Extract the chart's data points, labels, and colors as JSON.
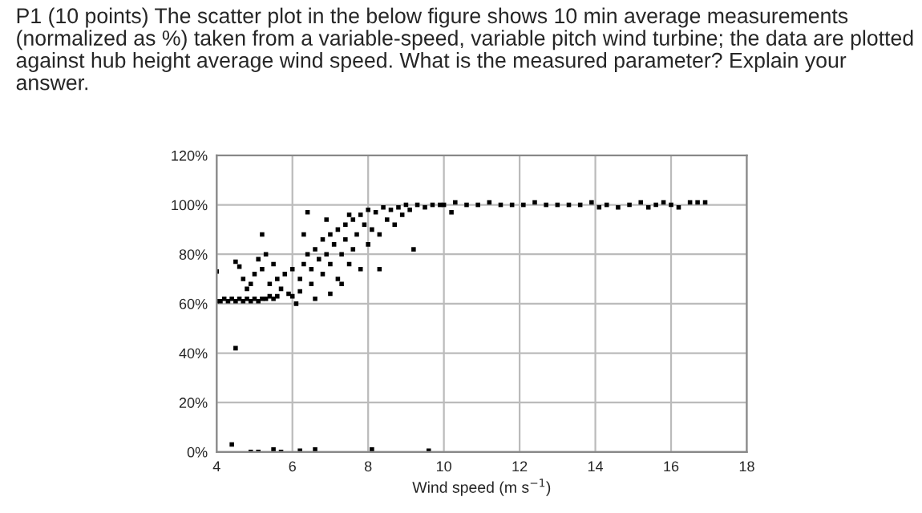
{
  "chart_data": {
    "type": "scatter",
    "title": "P1 (10 points) The scatter plot in the below figure shows 10 min average measurements (normalized as %) taken from a variable-speed, variable pitch wind turbine; the data are plotted against hub height average wind speed. What is the measured parameter? Explain your answer.",
    "xlabel": "Wind speed (m s$^{−1}$)",
    "x": [
      4.0,
      4.1,
      4.2,
      4.3,
      4.4,
      4.5,
      4.6,
      4.7,
      4.8,
      4.9,
      5.0,
      5.1,
      5.2,
      5.3,
      5.4,
      5.5,
      5.6,
      4.5,
      4.6,
      4.7,
      4.8,
      4.9,
      5.0,
      5.1,
      5.2,
      5.3,
      5.5,
      5.6,
      5.8,
      6.0,
      5.4,
      5.7,
      5.9,
      6.0,
      6.2,
      6.1,
      6.2,
      6.3,
      6.4,
      6.5,
      6.5,
      6.6,
      6.7,
      6.8,
      6.8,
      6.9,
      7.0,
      7.0,
      7.1,
      7.2,
      7.2,
      7.3,
      7.4,
      7.4,
      7.5,
      7.6,
      7.6,
      7.7,
      7.8,
      7.8,
      7.9,
      8.0,
      8.0,
      8.1,
      8.2,
      8.3,
      8.4,
      8.5,
      8.6,
      8.7,
      8.8,
      8.9,
      9.0,
      9.1,
      9.2,
      9.3,
      9.5,
      9.7,
      9.9,
      7.3,
      7.0,
      6.6,
      7.5,
      6.9,
      8.3,
      6.3,
      10.0,
      10.2,
      10.3,
      10.6,
      10.9,
      11.2,
      11.5,
      11.8,
      12.1,
      12.4,
      12.7,
      13.0,
      13.3,
      13.6,
      13.9,
      14.1,
      14.3,
      14.6,
      14.9,
      15.2,
      15.4,
      15.6,
      15.8,
      16.0,
      16.2,
      16.5,
      16.7,
      16.9,
      4.0,
      4.5,
      4.4,
      4.9,
      5.1,
      5.5,
      5.7,
      6.2,
      6.6,
      8.1,
      9.6,
      6.4,
      5.2
    ],
    "values": [
      61,
      61,
      62,
      61,
      62,
      61,
      62,
      61,
      62,
      61,
      62,
      61,
      62,
      62,
      63,
      62,
      63,
      77,
      75,
      70,
      66,
      68,
      72,
      78,
      74,
      80,
      76,
      70,
      72,
      74,
      68,
      66,
      64,
      63,
      65,
      60,
      70,
      76,
      80,
      74,
      68,
      82,
      78,
      72,
      86,
      80,
      88,
      76,
      84,
      70,
      90,
      80,
      92,
      86,
      76,
      94,
      82,
      88,
      96,
      74,
      92,
      98,
      84,
      90,
      97,
      88,
      99,
      94,
      98,
      92,
      99,
      96,
      100,
      98,
      82,
      100,
      99,
      100,
      100,
      68,
      64,
      62,
      96,
      94,
      74,
      88,
      100,
      97,
      101,
      100,
      100,
      101,
      100,
      100,
      100,
      101,
      100,
      100,
      100,
      100,
      101,
      99,
      100,
      99,
      100,
      101,
      99,
      100,
      101,
      100,
      99,
      101,
      101,
      101,
      73,
      42,
      3,
      0,
      0,
      1,
      0,
      0.5,
      1,
      1,
      0.5,
      97,
      88
    ],
    "color": "#000000",
    "marker": "square",
    "xlim": [
      4,
      18
    ],
    "xticks": [
      4,
      6,
      8,
      10,
      12,
      14,
      16,
      18
    ],
    "ylim": [
      0,
      120
    ],
    "yticks": [
      {
        "value": 0,
        "label": "0%"
      },
      {
        "value": 20,
        "label": "20%"
      },
      {
        "value": 40,
        "label": "40%"
      },
      {
        "value": 60,
        "label": "60%"
      },
      {
        "value": 80,
        "label": "80%"
      },
      {
        "value": 100,
        "label": "100%"
      },
      {
        "value": 120,
        "label": "120%"
      }
    ],
    "grid": true
  }
}
